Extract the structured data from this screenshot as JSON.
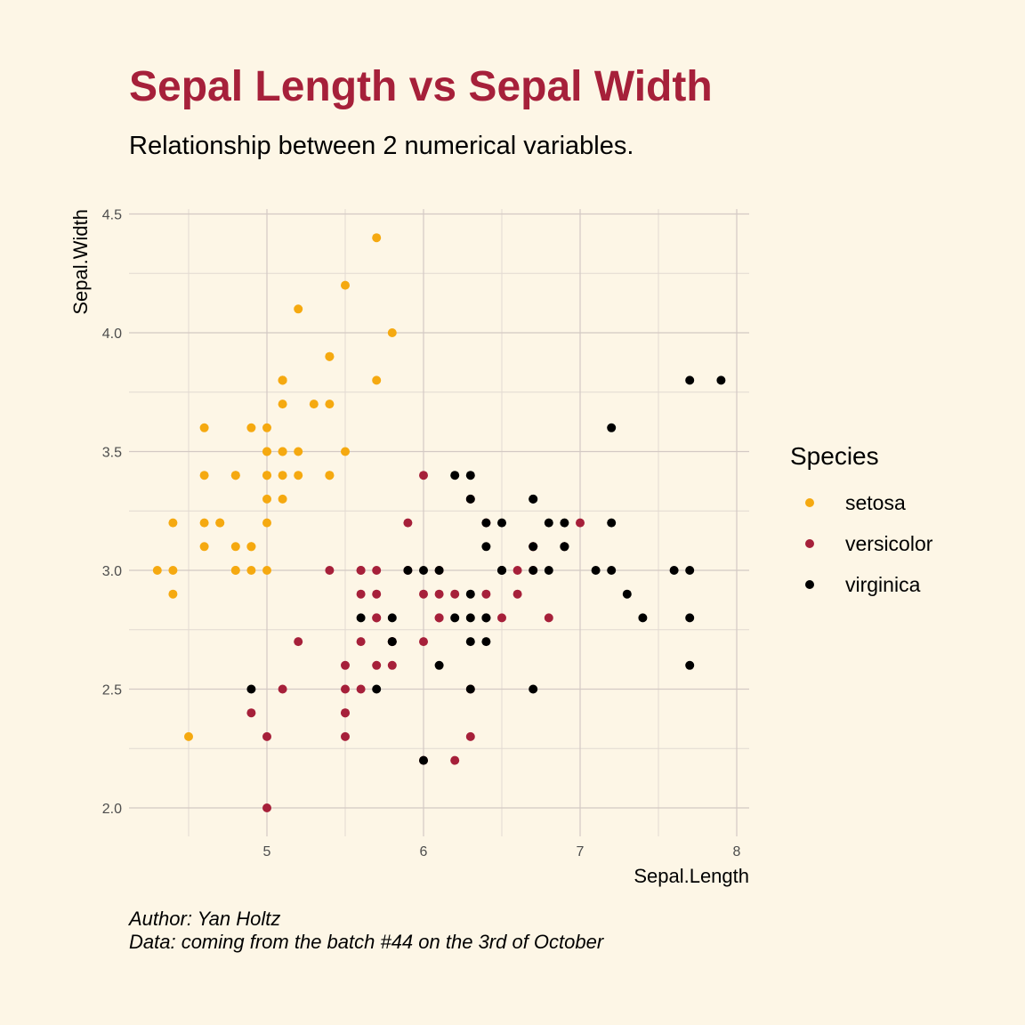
{
  "header": {
    "title": "Sepal Length vs Sepal Width",
    "subtitle": "Relationship between 2 numerical variables."
  },
  "caption": {
    "line1": "Author: Yan Holtz",
    "line2": "Data: coming from the batch #44 on the 3rd of October"
  },
  "chart_data": {
    "type": "scatter",
    "xlabel": "Sepal.Length",
    "ylabel": "Sepal.Width",
    "xlim": [
      4.3,
      7.9
    ],
    "ylim": [
      2.0,
      4.4
    ],
    "x_ticks": [
      "5",
      "6",
      "7",
      "8"
    ],
    "y_ticks": [
      "2.0",
      "2.5",
      "3.0",
      "3.5",
      "4.0",
      "4.5"
    ],
    "grid": true,
    "legend": {
      "title": "Species",
      "position": "right"
    },
    "series": [
      {
        "name": "setosa",
        "color": "#f5a910",
        "points": [
          [
            5.1,
            3.5
          ],
          [
            4.9,
            3.0
          ],
          [
            4.7,
            3.2
          ],
          [
            4.6,
            3.1
          ],
          [
            5.0,
            3.6
          ],
          [
            5.4,
            3.9
          ],
          [
            4.6,
            3.4
          ],
          [
            5.0,
            3.4
          ],
          [
            4.4,
            2.9
          ],
          [
            4.9,
            3.1
          ],
          [
            5.4,
            3.7
          ],
          [
            4.8,
            3.4
          ],
          [
            4.8,
            3.0
          ],
          [
            4.3,
            3.0
          ],
          [
            5.8,
            4.0
          ],
          [
            5.7,
            4.4
          ],
          [
            5.4,
            3.9
          ],
          [
            5.1,
            3.5
          ],
          [
            5.7,
            3.8
          ],
          [
            5.1,
            3.8
          ],
          [
            5.4,
            3.4
          ],
          [
            5.1,
            3.7
          ],
          [
            4.6,
            3.6
          ],
          [
            5.1,
            3.3
          ],
          [
            4.8,
            3.4
          ],
          [
            5.0,
            3.0
          ],
          [
            5.0,
            3.4
          ],
          [
            5.2,
            3.5
          ],
          [
            5.2,
            3.4
          ],
          [
            4.7,
            3.2
          ],
          [
            4.8,
            3.1
          ],
          [
            5.4,
            3.4
          ],
          [
            5.2,
            4.1
          ],
          [
            5.5,
            4.2
          ],
          [
            4.9,
            3.1
          ],
          [
            5.0,
            3.2
          ],
          [
            5.5,
            3.5
          ],
          [
            4.9,
            3.6
          ],
          [
            4.4,
            3.0
          ],
          [
            5.1,
            3.4
          ],
          [
            5.0,
            3.5
          ],
          [
            4.5,
            2.3
          ],
          [
            4.4,
            3.2
          ],
          [
            5.0,
            3.5
          ],
          [
            5.1,
            3.8
          ],
          [
            4.8,
            3.0
          ],
          [
            5.1,
            3.8
          ],
          [
            4.6,
            3.2
          ],
          [
            5.3,
            3.7
          ],
          [
            5.0,
            3.3
          ]
        ]
      },
      {
        "name": "versicolor",
        "color": "#a6203a",
        "points": [
          [
            7.0,
            3.2
          ],
          [
            6.4,
            3.2
          ],
          [
            6.9,
            3.1
          ],
          [
            5.5,
            2.3
          ],
          [
            6.5,
            2.8
          ],
          [
            5.7,
            2.8
          ],
          [
            6.3,
            3.3
          ],
          [
            4.9,
            2.4
          ],
          [
            6.6,
            2.9
          ],
          [
            5.2,
            2.7
          ],
          [
            5.0,
            2.0
          ],
          [
            5.9,
            3.0
          ],
          [
            6.0,
            2.2
          ],
          [
            6.1,
            2.9
          ],
          [
            5.6,
            2.9
          ],
          [
            6.7,
            3.1
          ],
          [
            5.6,
            3.0
          ],
          [
            5.8,
            2.7
          ],
          [
            6.2,
            2.2
          ],
          [
            5.6,
            2.5
          ],
          [
            5.9,
            3.2
          ],
          [
            6.1,
            2.8
          ],
          [
            6.3,
            2.5
          ],
          [
            6.1,
            2.8
          ],
          [
            6.4,
            2.9
          ],
          [
            6.6,
            3.0
          ],
          [
            6.8,
            2.8
          ],
          [
            6.7,
            3.0
          ],
          [
            6.0,
            2.9
          ],
          [
            5.7,
            2.6
          ],
          [
            5.5,
            2.4
          ],
          [
            5.5,
            2.4
          ],
          [
            5.8,
            2.7
          ],
          [
            6.0,
            2.7
          ],
          [
            5.4,
            3.0
          ],
          [
            6.0,
            3.4
          ],
          [
            6.7,
            3.1
          ],
          [
            6.3,
            2.3
          ],
          [
            5.6,
            3.0
          ],
          [
            5.5,
            2.5
          ],
          [
            5.5,
            2.6
          ],
          [
            6.1,
            3.0
          ],
          [
            5.8,
            2.6
          ],
          [
            5.0,
            2.3
          ],
          [
            5.6,
            2.7
          ],
          [
            5.7,
            3.0
          ],
          [
            5.7,
            2.9
          ],
          [
            6.2,
            2.9
          ],
          [
            5.1,
            2.5
          ],
          [
            5.7,
            2.8
          ]
        ]
      },
      {
        "name": "virginica",
        "color": "#000000",
        "points": [
          [
            6.3,
            3.3
          ],
          [
            5.8,
            2.7
          ],
          [
            7.1,
            3.0
          ],
          [
            6.3,
            2.9
          ],
          [
            6.5,
            3.0
          ],
          [
            7.6,
            3.0
          ],
          [
            4.9,
            2.5
          ],
          [
            7.3,
            2.9
          ],
          [
            6.7,
            2.5
          ],
          [
            7.2,
            3.6
          ],
          [
            6.5,
            3.2
          ],
          [
            6.4,
            2.7
          ],
          [
            6.8,
            3.0
          ],
          [
            5.7,
            2.5
          ],
          [
            5.8,
            2.8
          ],
          [
            6.4,
            3.2
          ],
          [
            6.5,
            3.0
          ],
          [
            7.7,
            3.8
          ],
          [
            7.7,
            2.6
          ],
          [
            6.0,
            2.2
          ],
          [
            6.9,
            3.2
          ],
          [
            5.6,
            2.8
          ],
          [
            7.7,
            2.8
          ],
          [
            6.3,
            2.7
          ],
          [
            6.7,
            3.3
          ],
          [
            7.2,
            3.2
          ],
          [
            6.2,
            2.8
          ],
          [
            6.1,
            3.0
          ],
          [
            6.4,
            2.8
          ],
          [
            7.2,
            3.0
          ],
          [
            7.4,
            2.8
          ],
          [
            7.9,
            3.8
          ],
          [
            6.4,
            2.8
          ],
          [
            6.3,
            2.8
          ],
          [
            6.1,
            2.6
          ],
          [
            7.7,
            3.0
          ],
          [
            6.3,
            3.4
          ],
          [
            6.4,
            3.1
          ],
          [
            6.0,
            3.0
          ],
          [
            6.9,
            3.1
          ],
          [
            6.7,
            3.1
          ],
          [
            6.9,
            3.1
          ],
          [
            5.8,
            2.7
          ],
          [
            6.8,
            3.2
          ],
          [
            6.7,
            3.3
          ],
          [
            6.7,
            3.0
          ],
          [
            6.3,
            2.5
          ],
          [
            6.5,
            3.0
          ],
          [
            6.2,
            3.4
          ],
          [
            5.9,
            3.0
          ]
        ]
      }
    ]
  }
}
